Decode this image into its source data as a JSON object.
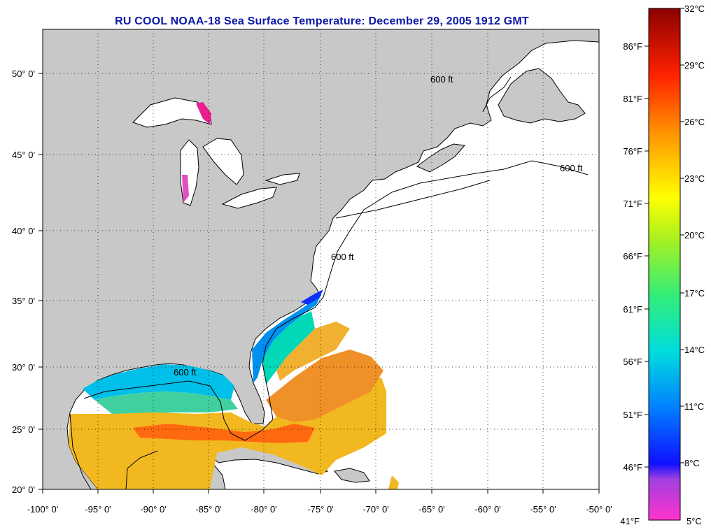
{
  "title": "RU COOL  NOAA-18  Sea Surface Temperature:  December 29, 2005 1912 GMT",
  "map": {
    "lon_range": [
      -100,
      -50
    ],
    "lat_range": [
      20,
      52.5
    ],
    "lon_ticks": [
      "-100° 0'",
      "-95° 0'",
      "-90° 0'",
      "-85° 0'",
      "-80° 0'",
      "-75° 0'",
      "-70° 0'",
      "-65° 0'",
      "-60° 0'",
      "-55° 0'",
      "-50° 0'"
    ],
    "lat_ticks": [
      "20° 0'",
      "25° 0'",
      "30° 0'",
      "35° 0'",
      "40° 0'",
      "45° 0'",
      "50° 0'"
    ],
    "contour_label": "600 ft",
    "grid": true,
    "land_color": "#c8c8c8",
    "water_color": "#ffffff"
  },
  "colorbar": {
    "celsius_labels": [
      "32°C",
      "29°C",
      "26°C",
      "23°C",
      "20°C",
      "17°C",
      "14°C",
      "11°C",
      "8°C",
      "5°C"
    ],
    "fahrenheit_labels": [
      "86°F",
      "81°F",
      "76°F",
      "71°F",
      "66°F",
      "61°F",
      "56°F",
      "51°F",
      "46°F",
      "41°F"
    ],
    "range_c": [
      5,
      32
    ],
    "range_f": [
      41,
      89.6
    ]
  }
}
